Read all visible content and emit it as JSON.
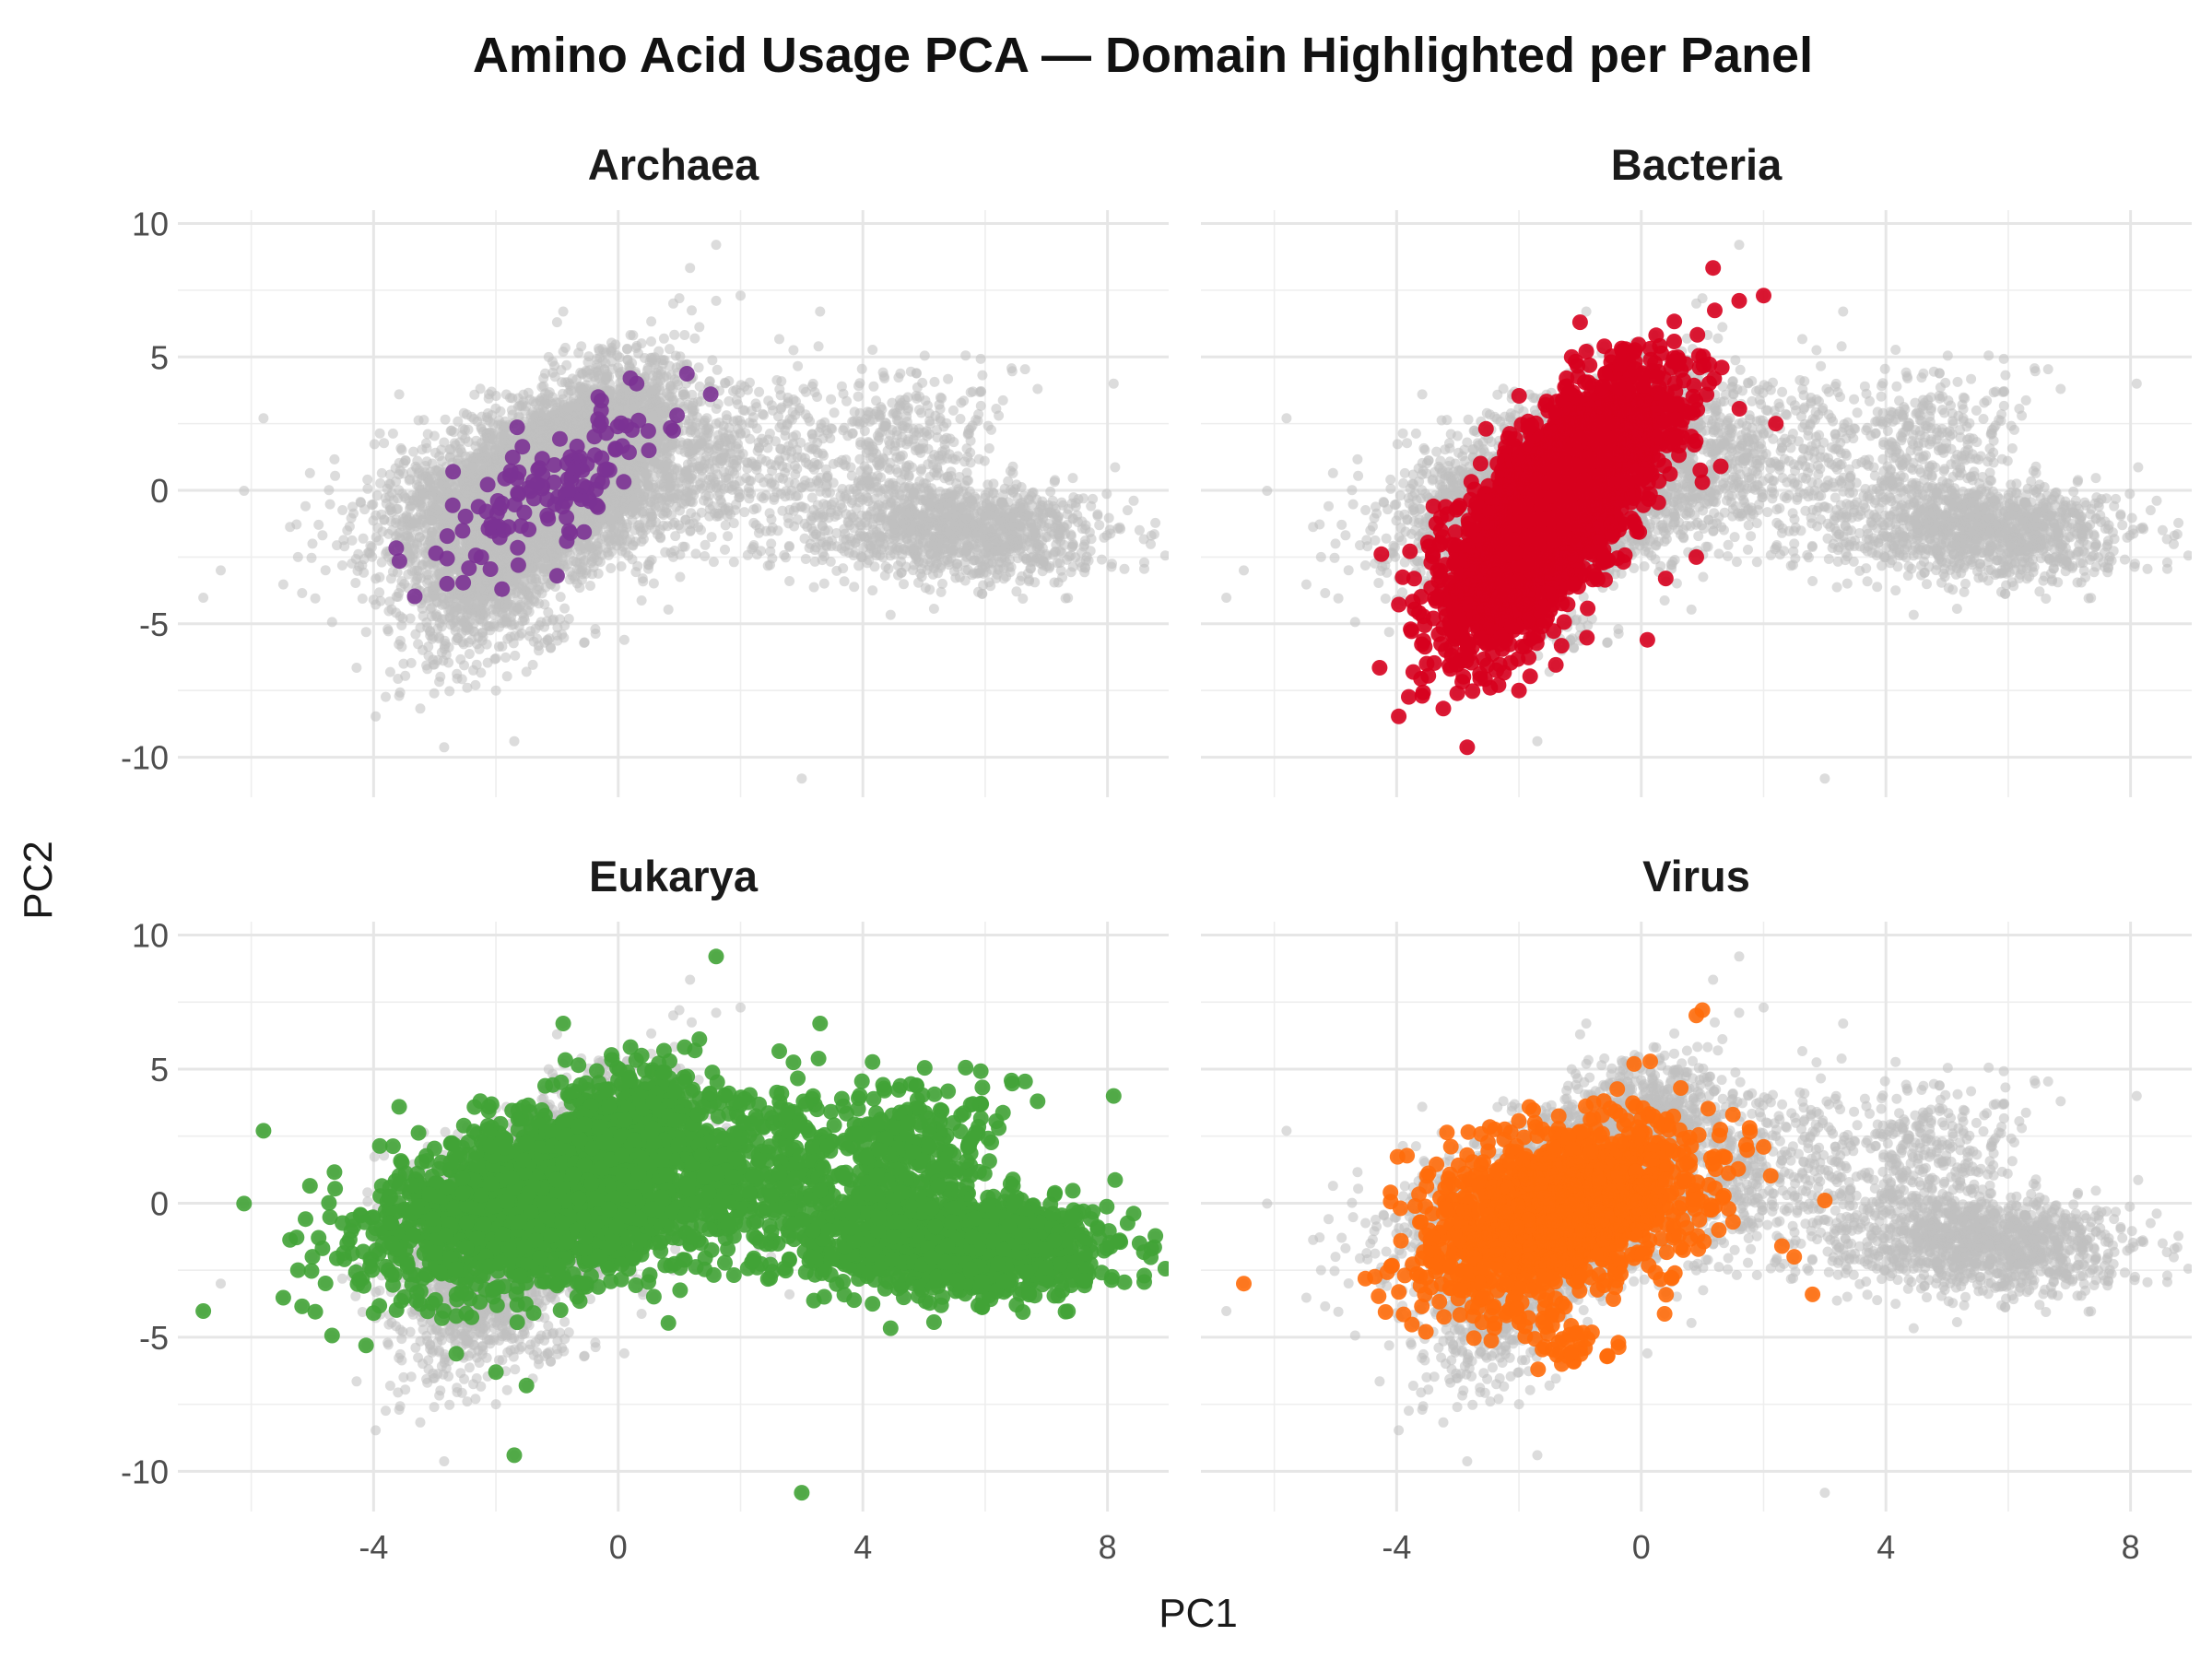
{
  "chart_data": {
    "type": "scatter",
    "title": "Amino Acid Usage PCA — Domain Highlighted per Panel",
    "xlabel": "PC1",
    "ylabel": "PC2",
    "xlim": [
      -7.2,
      9.0
    ],
    "ylim": [
      -11.5,
      10.5
    ],
    "x_ticks": [
      -4,
      0,
      4,
      8
    ],
    "y_ticks": [
      10,
      5,
      0,
      -5,
      -10
    ],
    "grid": true,
    "legend": "none",
    "background_color": "#bfbfbf",
    "panels": [
      {
        "name": "Archaea",
        "color": "#7b3294",
        "clusters": [
          {
            "cx": -1.1,
            "cy": 0.2,
            "sx": 1.0,
            "sy": 1.7,
            "rho": 0.82,
            "n": 130
          }
        ],
        "points": [
          [
            -2.8,
            -3.5
          ],
          [
            -1.9,
            -3.7
          ],
          [
            0.2,
            4.2
          ],
          [
            0.3,
            4.0
          ],
          [
            -2.7,
            0.7
          ],
          [
            0.5,
            1.5
          ],
          [
            -1.0,
            -3.2
          ]
        ]
      },
      {
        "name": "Bacteria",
        "color": "#d7001e",
        "clusters": [
          {
            "cx": -1.5,
            "cy": -0.9,
            "sx": 0.85,
            "sy": 2.4,
            "rho": 0.7,
            "n": 2600
          },
          {
            "cx": -0.5,
            "cy": 2.4,
            "sx": 0.6,
            "sy": 1.1,
            "rho": 0.5,
            "n": 300
          }
        ],
        "points": [
          [
            2.0,
            7.3
          ],
          [
            1.6,
            7.1
          ],
          [
            2.2,
            2.5
          ],
          [
            1.3,
            0.9
          ],
          [
            -1.0,
            6.3
          ],
          [
            -3.4,
            -4.8
          ],
          [
            -2.0,
            -7.5
          ],
          [
            0.1,
            -5.6
          ],
          [
            1.0,
            0.3
          ],
          [
            0.4,
            -3.3
          ],
          [
            0.9,
            -2.5
          ],
          [
            -0.9,
            5.2
          ]
        ]
      },
      {
        "name": "Eukarya",
        "color": "#41a336",
        "clusters": [
          {
            "cx": -1.0,
            "cy": 0.2,
            "sx": 1.5,
            "sy": 1.7,
            "rho": 0.4,
            "n": 2200
          },
          {
            "cx": 0.2,
            "cy": 3.0,
            "sx": 0.6,
            "sy": 1.2,
            "rho": 0.3,
            "n": 300
          },
          {
            "cx": 5.5,
            "cy": -1.5,
            "sx": 1.2,
            "sy": 0.9,
            "rho": -0.1,
            "n": 1200
          },
          {
            "cx": 4.7,
            "cy": 1.8,
            "sx": 0.7,
            "sy": 1.5,
            "rho": 0.2,
            "n": 300
          },
          {
            "cx": 2.5,
            "cy": 0.9,
            "sx": 0.9,
            "sy": 1.6,
            "rho": 0.2,
            "n": 250
          }
        ],
        "points": [
          [
            1.6,
            9.2
          ],
          [
            3.0,
            -10.8
          ],
          [
            -1.7,
            -9.4
          ],
          [
            -5.8,
            2.7
          ],
          [
            8.1,
            4.0
          ],
          [
            8.6,
            -2.7
          ],
          [
            -5.0,
            -2.0
          ],
          [
            -4.0,
            -4.1
          ],
          [
            -1.5,
            -6.8
          ],
          [
            -2.0,
            -6.3
          ],
          [
            3.3,
            6.7
          ],
          [
            -0.9,
            6.7
          ],
          [
            7.0,
            -2.4
          ]
        ]
      },
      {
        "name": "Virus",
        "color": "#ff6b0a",
        "clusters": [
          {
            "cx": -1.3,
            "cy": -0.3,
            "sx": 1.1,
            "sy": 1.6,
            "rho": 0.35,
            "n": 1500
          },
          {
            "cx": -1.2,
            "cy": -5.0,
            "sx": 0.4,
            "sy": 0.6,
            "rho": 0.0,
            "n": 40
          }
        ],
        "points": [
          [
            -6.5,
            -3.0
          ],
          [
            0.9,
            7.0
          ],
          [
            1.0,
            7.2
          ],
          [
            2.8,
            -3.4
          ],
          [
            3.0,
            0.1
          ],
          [
            2.0,
            2.1
          ],
          [
            2.3,
            -1.6
          ],
          [
            2.5,
            -2.0
          ],
          [
            -4.1,
            0.4
          ],
          [
            -1.3,
            -6.0
          ],
          [
            0.5,
            -2.8
          ],
          [
            1.5,
            -0.7
          ]
        ]
      }
    ]
  }
}
